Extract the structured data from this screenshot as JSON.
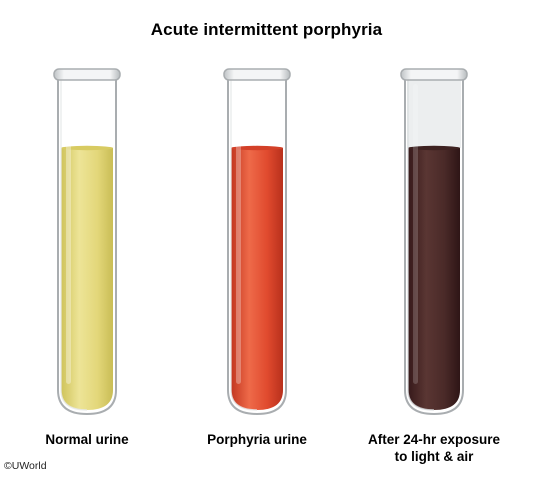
{
  "title": "Acute intermittent porphyria",
  "tubes": [
    {
      "label_lines": [
        "Normal urine"
      ],
      "liquid_color": "#e3d77a",
      "liquid_color_dark": "#cfc35a"
    },
    {
      "label_lines": [
        "Porphyria urine"
      ],
      "liquid_color": "#e04a2e",
      "liquid_color_dark": "#c23620"
    },
    {
      "label_lines": [
        "After 24-hr exposure",
        "to light & air"
      ],
      "liquid_color": "#4a2a28",
      "liquid_color_dark": "#36191a"
    }
  ],
  "copyright": "©UWorld"
}
